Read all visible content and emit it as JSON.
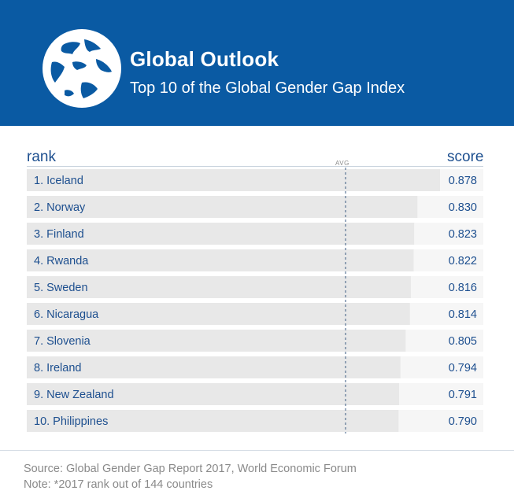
{
  "header": {
    "title": "Global Outlook",
    "subtitle": "Top 10 of the Global Gender Gap Index",
    "globe_icon": "globe-icon"
  },
  "columns": {
    "rank": "rank",
    "score": "score",
    "avg": "AVG"
  },
  "chart_data": {
    "type": "bar",
    "orientation": "horizontal",
    "title": "Top 10 of the Global Gender Gap Index",
    "categories": [
      "1. Iceland",
      "2. Norway",
      "3. Finland",
      "4. Rwanda",
      "5. Sweden",
      "6. Nicaragua",
      "7. Slovenia",
      "8. Ireland",
      "9. New Zealand",
      "10. Philippines"
    ],
    "values": [
      0.878,
      0.83,
      0.823,
      0.822,
      0.816,
      0.814,
      0.805,
      0.794,
      0.791,
      0.79
    ],
    "value_labels": [
      "0.878",
      "0.830",
      "0.823",
      "0.822",
      "0.816",
      "0.814",
      "0.805",
      "0.794",
      "0.791",
      "0.790"
    ],
    "xlim": [
      0,
      0.97
    ],
    "reference_line": {
      "label": "AVG"
    },
    "grid": false,
    "legend": "none"
  },
  "colors": {
    "header_bg": "#0a5aa3",
    "bar": "#e8e8e8",
    "track": "#f6f6f6",
    "text": "#1d4f8f",
    "avg_line": "#3a5a80"
  },
  "footer": {
    "source": "Source: Global Gender Gap Report 2017, World Economic Forum",
    "note": "Note: *2017 rank out of 144 countries"
  }
}
